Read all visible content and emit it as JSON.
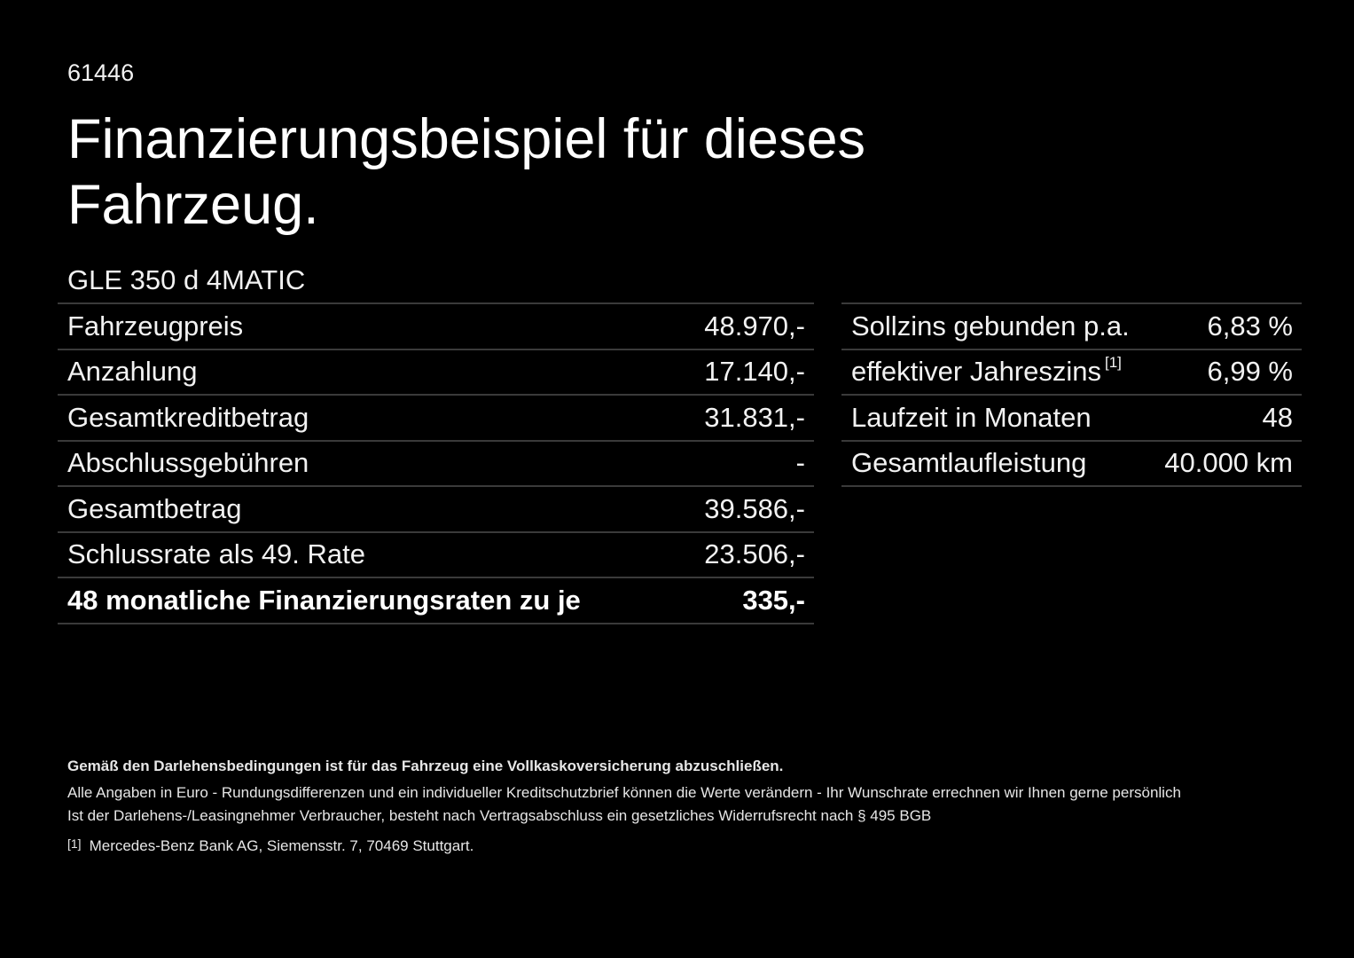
{
  "ref_id": "61446",
  "title": "Finanzierungsbeispiel für dieses Fahrzeug.",
  "model": "GLE 350 d 4MATIC",
  "left_table": [
    {
      "label": "Fahrzeugpreis",
      "value": "48.970,-"
    },
    {
      "label": "Anzahlung",
      "value": "17.140,-"
    },
    {
      "label": "Gesamtkreditbetrag",
      "value": "31.831,-"
    },
    {
      "label": "Abschlussgebühren",
      "value": "-"
    },
    {
      "label": "Gesamtbetrag",
      "value": "39.586,-"
    },
    {
      "label": "Schlussrate als 49. Rate",
      "value": "23.506,-"
    },
    {
      "label": "48 monatliche Finanzierungsraten zu je",
      "value": "335,-"
    }
  ],
  "right_table": [
    {
      "label": "Sollzins gebunden p.a.",
      "value": "6,83 %"
    },
    {
      "label": "effektiver Jahreszins",
      "ref": "[1]",
      "value": "6,99 %"
    },
    {
      "label": "Laufzeit in Monaten",
      "value": "48"
    },
    {
      "label": "Gesamtlaufleistung",
      "value": "40.000 km"
    }
  ],
  "footer": {
    "insurance_note": "Gemäß den Darlehensbedingungen ist für das Fahrzeug eine Vollkaskoversicherung abzuschließen.",
    "line1": "Alle Angaben in Euro - Rundungsdifferenzen und ein individueller Kreditschutzbrief können die Werte verändern - Ihr Wunschrate errechnen wir Ihnen gerne persönlich",
    "line2": "Ist der Darlehens-/Leasingnehmer Verbraucher, besteht nach Vertragsabschluss ein gesetzliches Widerrufsrecht nach § 495 BGB",
    "footnote_marker": "[1]",
    "footnote_text": "Mercedes-Benz Bank AG, Siemensstr. 7, 70469 Stuttgart."
  }
}
